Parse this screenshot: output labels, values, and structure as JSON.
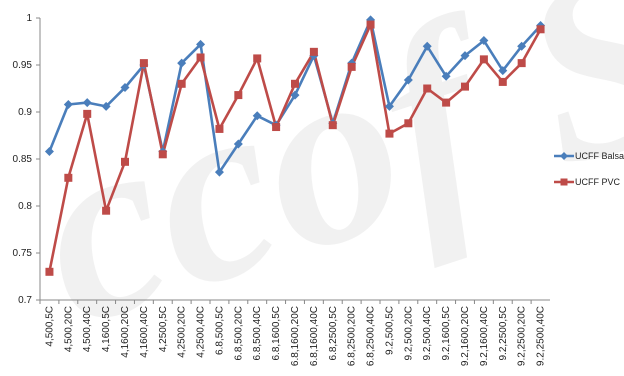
{
  "chart_data": {
    "type": "line",
    "title": "",
    "xlabel": "",
    "ylabel": "",
    "ylim": [
      0.7,
      1.0
    ],
    "yticks": [
      "0.7",
      "0.75",
      "0.8",
      "0.85",
      "0.9",
      "0.95",
      "1"
    ],
    "categories": [
      "4,500,5C",
      "4,500,20C",
      "4,500,40C",
      "4,1600,5C",
      "4,1600,20C",
      "4,1600,40C",
      "4,2500,5C",
      "4,2500,20C",
      "4,2500,40C",
      "6.8,500,5C",
      "6.8,500,20C",
      "6.8,500,40C",
      "6.8,1600,5C",
      "6.8,1600,20C",
      "6.8,1600,40C",
      "6.8,2500,5C",
      "6.8,2500,20C",
      "6.8,2500,40C",
      "9.2,500,5C",
      "9.2,500,20C",
      "9.2,500,40C",
      "9.2,1600,5C",
      "9.2,1600,20C",
      "9.2,1600,40C",
      "9.2,2500,5C",
      "9.2,2500,20C",
      "9.2,2500,40C"
    ],
    "grid": false,
    "legend_position": "right",
    "series": [
      {
        "name": "UCFF Balsa",
        "color": "#4a7ebb",
        "marker": "diamond",
        "values": [
          0.858,
          0.908,
          0.91,
          0.906,
          0.926,
          0.95,
          0.858,
          0.952,
          0.972,
          0.836,
          0.866,
          0.896,
          0.886,
          0.918,
          0.96,
          0.888,
          0.952,
          0.998,
          0.906,
          0.934,
          0.97,
          0.938,
          0.96,
          0.976,
          0.944,
          0.97,
          0.992
        ]
      },
      {
        "name": "UCFF PVC",
        "color": "#be4b48",
        "marker": "square",
        "values": [
          0.73,
          0.83,
          0.898,
          0.795,
          0.847,
          0.952,
          0.855,
          0.93,
          0.958,
          0.882,
          0.918,
          0.957,
          0.884,
          0.93,
          0.964,
          0.886,
          0.948,
          0.993,
          0.877,
          0.888,
          0.925,
          0.91,
          0.927,
          0.956,
          0.932,
          0.952,
          0.988
        ]
      }
    ]
  },
  "watermark": "ccof S"
}
